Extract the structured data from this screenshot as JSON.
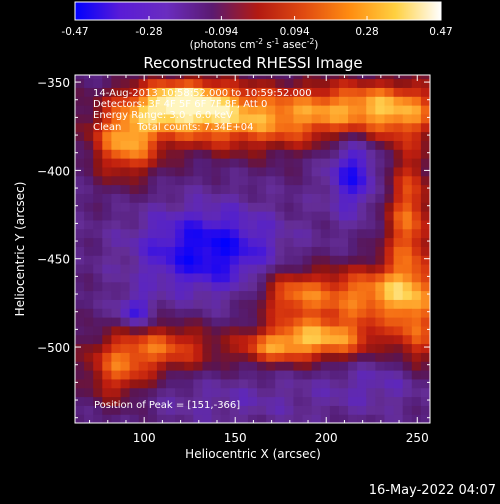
{
  "colorbar": {
    "tick_labels": [
      "-0.47",
      "-0.28",
      "-0.094",
      "0.094",
      "0.28",
      "0.47"
    ],
    "min": -0.47,
    "max": 0.47,
    "unit_prefix": "(photons cm",
    "unit_exp1": "-2",
    "unit_mid1": " s",
    "unit_exp2": "-1",
    "unit_mid2": " asec",
    "unit_exp3": "-2",
    "unit_suffix": ")",
    "colormap": [
      "#0000ff",
      "#5a1cd6",
      "#6a2cc0",
      "#5b1a70",
      "#b31a12",
      "#e04a10",
      "#ff8c10",
      "#ffd040",
      "#ffffff"
    ]
  },
  "chart_data": {
    "type": "heatmap",
    "title": "Reconstructed RHESSI Image",
    "xlabel": "Heliocentric X (arcsec)",
    "ylabel": "Heliocentric Y (arcsec)",
    "xlim": [
      62,
      257
    ],
    "ylim": [
      -543,
      -346
    ],
    "xticks": [
      100,
      150,
      200,
      250
    ],
    "yticks": [
      -350,
      -400,
      -450,
      -500
    ],
    "info_lines": [
      "14-Aug-2013 10:58:52.000 to 10:59:52.000",
      "Detectors: 3F 4F 5F 6F 7F 8F, Att 0",
      "Energy Range: 3.0 - 6.0 keV",
      "Clean     Total counts: 7.34E+04"
    ],
    "peak_label": "Position of Peak = [151,-366]",
    "peak": [
      151,
      -366
    ]
  },
  "footer": {
    "date": "16-May-2022 04:07"
  }
}
